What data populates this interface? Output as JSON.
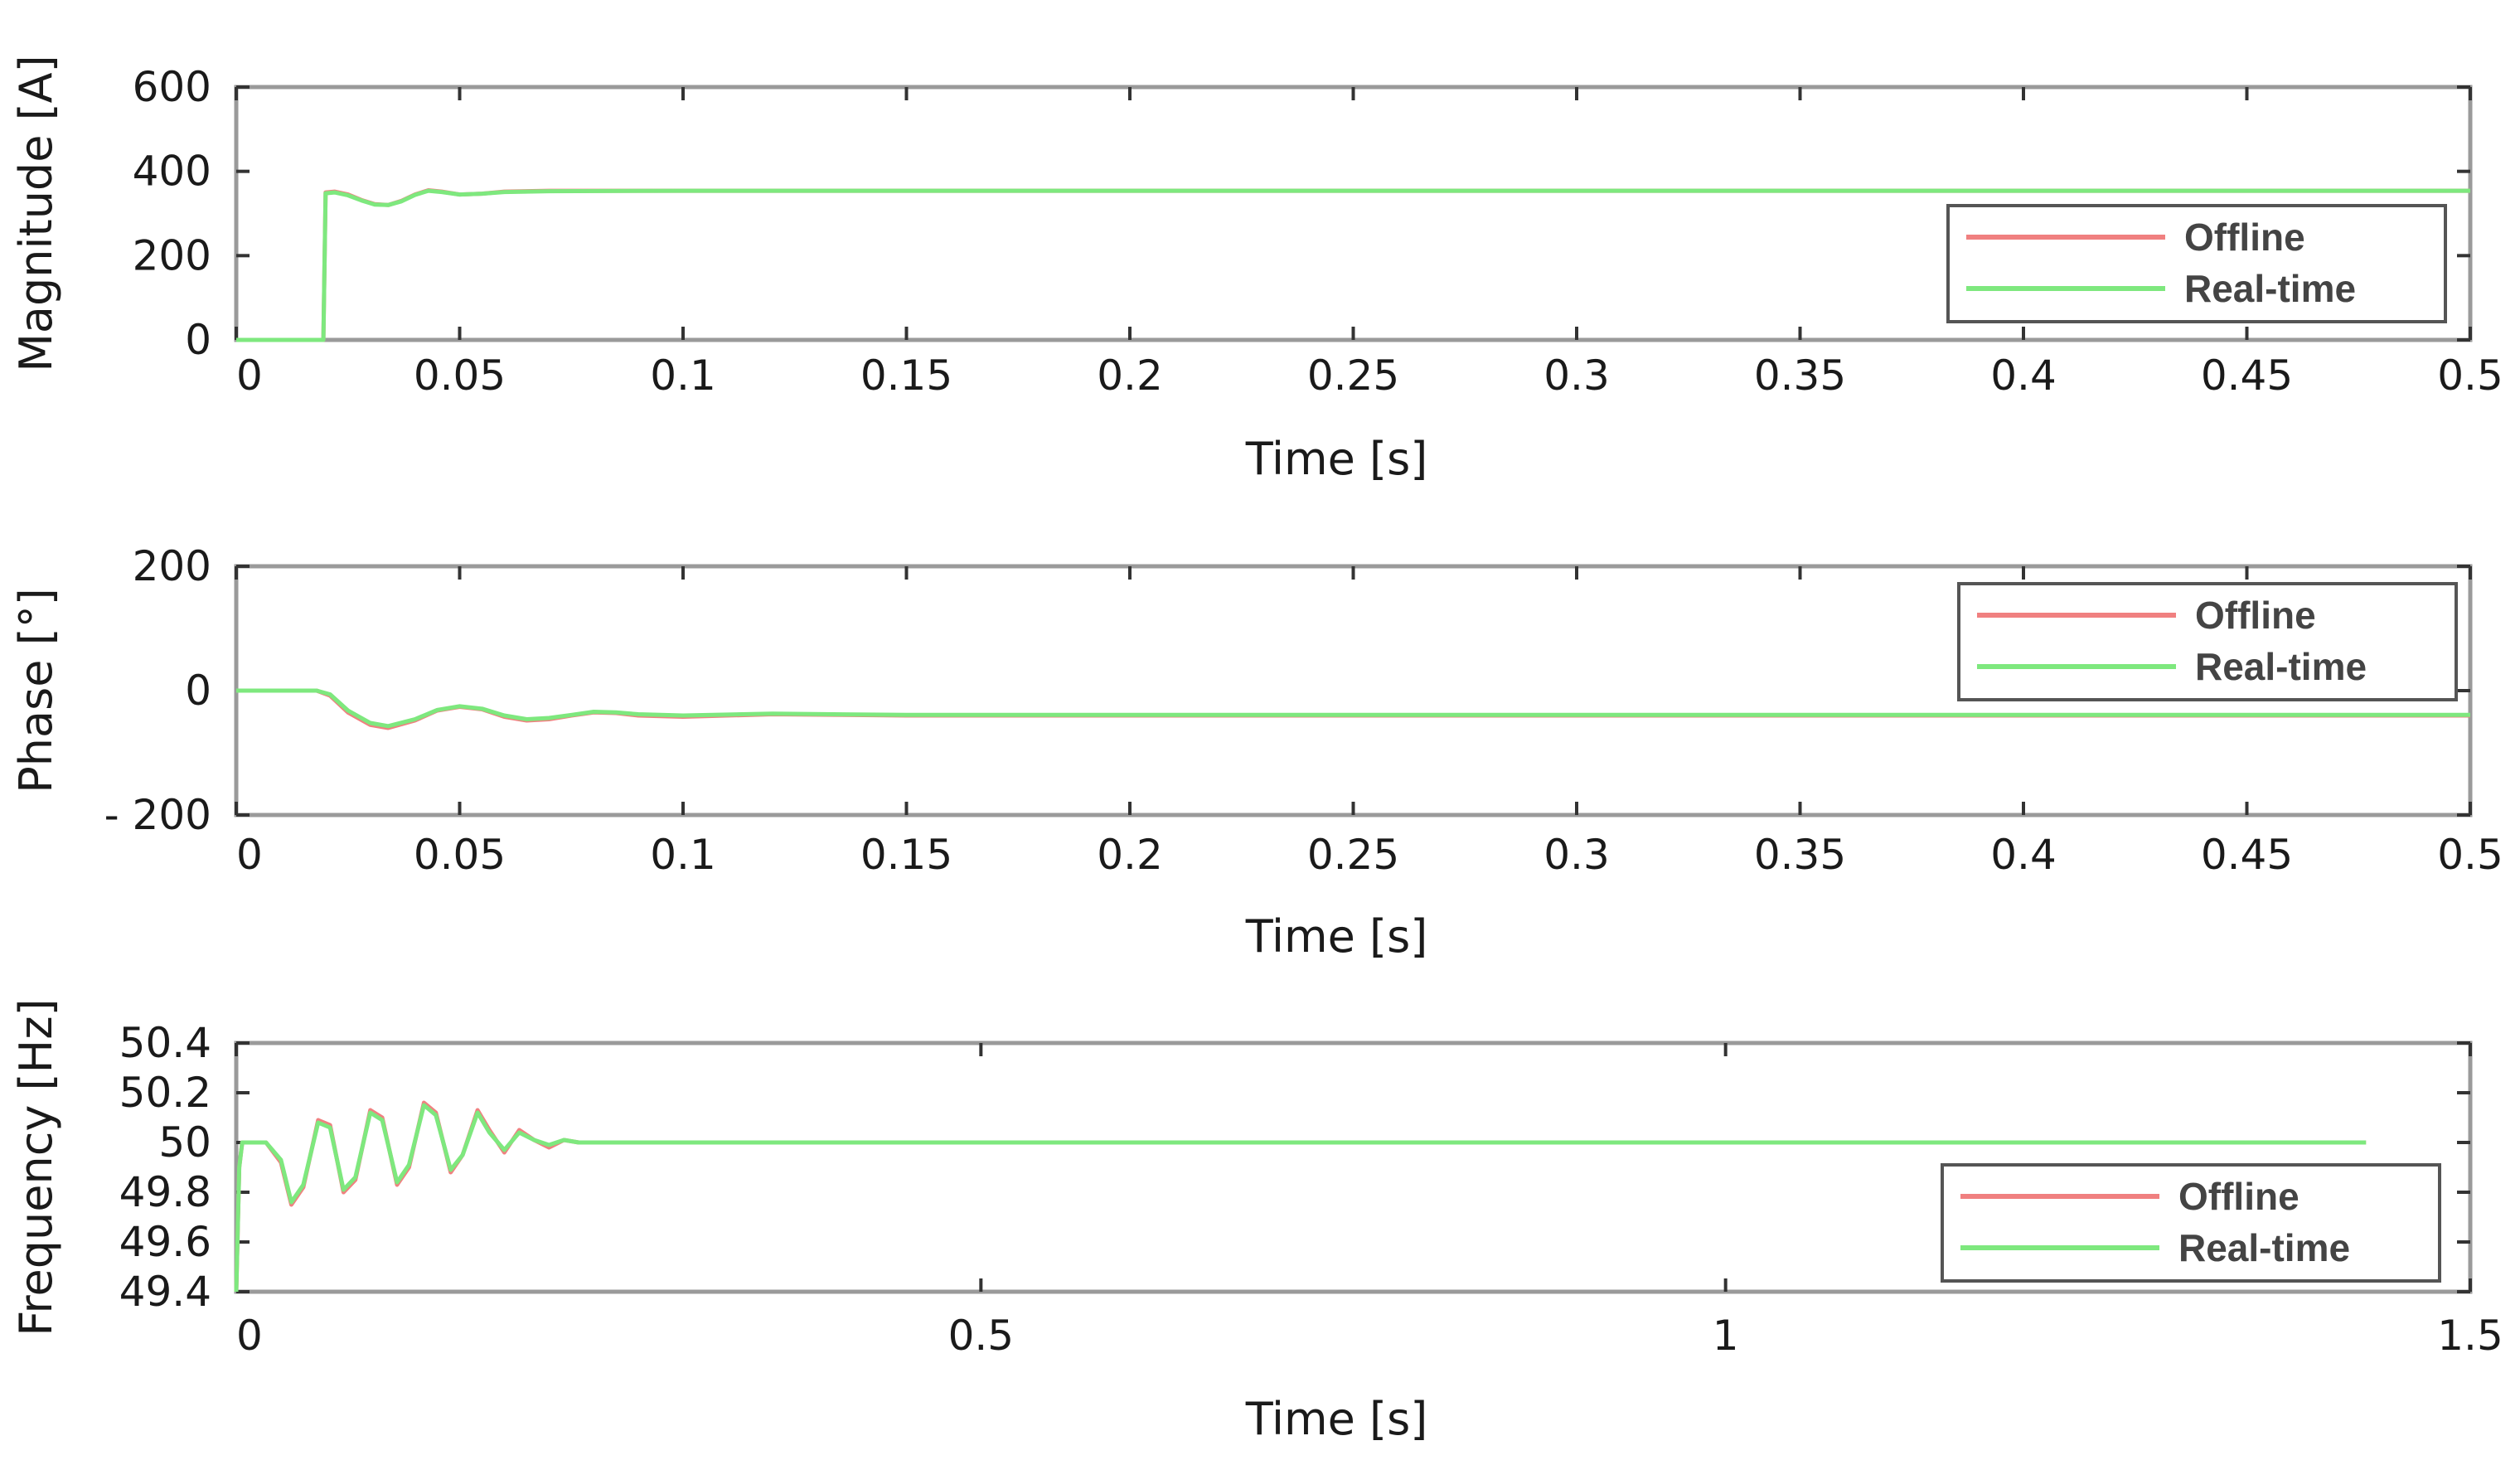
{
  "chart_data": [
    {
      "type": "line",
      "xlabel": "Time [s]",
      "ylabel": "Magnitude [A]",
      "xlim": [
        0,
        0.5
      ],
      "ylim": [
        0,
        600
      ],
      "xticks": [
        0,
        0.05,
        0.1,
        0.15,
        0.2,
        0.25,
        0.3,
        0.35,
        0.4,
        0.45,
        0.5
      ],
      "xtick_labels": [
        "0",
        "0.05",
        "0.1",
        "0.15",
        "0.2",
        "0.25",
        "0.3",
        "0.35",
        "0.4",
        "0.45",
        "0.5"
      ],
      "yticks": [
        0,
        200,
        400,
        600
      ],
      "ytick_labels": [
        "0",
        "200",
        "400",
        "600"
      ],
      "legend_placement": "bottom-right",
      "grid": false,
      "series": [
        {
          "name": "Offline",
          "color": "#f08080",
          "x": [
            0,
            0.0195,
            0.02,
            0.022,
            0.025,
            0.028,
            0.031,
            0.034,
            0.037,
            0.04,
            0.043,
            0.046,
            0.05,
            0.055,
            0.06,
            0.07,
            0.1,
            0.2,
            0.3,
            0.4,
            0.5
          ],
          "y": [
            0,
            0,
            350,
            352,
            345,
            332,
            322,
            320,
            330,
            345,
            355,
            352,
            345,
            347,
            352,
            354,
            354,
            354,
            354,
            354,
            354
          ]
        },
        {
          "name": "Real-time",
          "color": "#7ee87e",
          "x": [
            0,
            0.0195,
            0.02,
            0.022,
            0.025,
            0.028,
            0.031,
            0.034,
            0.037,
            0.04,
            0.043,
            0.046,
            0.05,
            0.055,
            0.06,
            0.07,
            0.1,
            0.2,
            0.3,
            0.4,
            0.5
          ],
          "y": [
            0,
            0,
            348,
            350,
            343,
            331,
            321,
            320,
            329,
            344,
            354,
            351,
            345,
            347,
            351,
            353,
            354,
            354,
            354,
            354,
            354
          ]
        }
      ]
    },
    {
      "type": "line",
      "xlabel": "Time [s]",
      "ylabel": "Phase [°]",
      "xlim": [
        0,
        0.5
      ],
      "ylim": [
        -200,
        200
      ],
      "xticks": [
        0,
        0.05,
        0.1,
        0.15,
        0.2,
        0.25,
        0.3,
        0.35,
        0.4,
        0.45,
        0.5
      ],
      "xtick_labels": [
        "0",
        "0.05",
        "0.1",
        "0.15",
        "0.2",
        "0.25",
        "0.3",
        "0.35",
        "0.4",
        "0.45",
        "0.5"
      ],
      "yticks": [
        -200,
        0,
        200
      ],
      "ytick_labels": [
        "- 200",
        "0",
        "200"
      ],
      "legend_placement": "top-right",
      "grid": false,
      "series": [
        {
          "name": "Offline",
          "color": "#f08080",
          "x": [
            0,
            0.018,
            0.021,
            0.025,
            0.03,
            0.034,
            0.04,
            0.045,
            0.05,
            0.055,
            0.06,
            0.065,
            0.07,
            0.075,
            0.08,
            0.085,
            0.09,
            0.1,
            0.12,
            0.15,
            0.2,
            0.3,
            0.4,
            0.5
          ],
          "y": [
            0,
            0,
            -8,
            -35,
            -55,
            -60,
            -48,
            -32,
            -26,
            -30,
            -42,
            -48,
            -46,
            -40,
            -35,
            -36,
            -40,
            -42,
            -38,
            -40,
            -40,
            -40,
            -40,
            -40
          ]
        },
        {
          "name": "Real-time",
          "color": "#7ee87e",
          "x": [
            0,
            0.018,
            0.021,
            0.025,
            0.03,
            0.034,
            0.04,
            0.045,
            0.05,
            0.055,
            0.06,
            0.065,
            0.07,
            0.075,
            0.08,
            0.085,
            0.09,
            0.1,
            0.12,
            0.15,
            0.2,
            0.3,
            0.4,
            0.5
          ],
          "y": [
            0,
            0,
            -6,
            -32,
            -52,
            -57,
            -46,
            -31,
            -25,
            -29,
            -40,
            -46,
            -44,
            -39,
            -34,
            -35,
            -38,
            -40,
            -37,
            -39,
            -39,
            -39,
            -39,
            -39
          ]
        }
      ]
    },
    {
      "type": "line",
      "xlabel": "Time [s]",
      "ylabel": "Frequency [Hz]",
      "xlim": [
        0,
        1.5
      ],
      "ylim": [
        49.4,
        50.4
      ],
      "xticks": [
        0,
        0.5,
        1,
        1.5
      ],
      "xtick_labels": [
        "0",
        "0.5",
        "1",
        "1.5"
      ],
      "yticks": [
        49.4,
        49.6,
        49.8,
        50,
        50.2,
        50.4
      ],
      "ytick_labels": [
        "49.4",
        "49.6",
        "49.8",
        "50",
        "50.2",
        "50.4"
      ],
      "legend_placement": "bottom-right",
      "grid": false,
      "series": [
        {
          "name": "Offline",
          "color": "#f08080",
          "x": [
            0,
            0.002,
            0.004,
            0.01,
            0.02,
            0.03,
            0.037,
            0.045,
            0.055,
            0.063,
            0.072,
            0.08,
            0.09,
            0.098,
            0.108,
            0.116,
            0.126,
            0.134,
            0.144,
            0.152,
            0.162,
            0.17,
            0.18,
            0.19,
            0.2,
            0.21,
            0.22,
            0.23,
            0.25,
            0.3,
            0.5,
            1.0,
            1.43
          ],
          "y": [
            49.4,
            49.9,
            50.0,
            50.0,
            50.0,
            49.92,
            49.75,
            49.82,
            50.09,
            50.07,
            49.8,
            49.85,
            50.13,
            50.1,
            49.83,
            49.9,
            50.16,
            50.12,
            49.88,
            49.95,
            50.13,
            50.05,
            49.96,
            50.05,
            50.01,
            49.98,
            50.01,
            50.0,
            50.0,
            50.0,
            50.0,
            50.0,
            50.0
          ]
        },
        {
          "name": "Real-time",
          "color": "#7ee87e",
          "x": [
            0,
            0.002,
            0.004,
            0.01,
            0.02,
            0.03,
            0.037,
            0.045,
            0.055,
            0.063,
            0.072,
            0.08,
            0.09,
            0.098,
            0.108,
            0.116,
            0.126,
            0.134,
            0.144,
            0.152,
            0.162,
            0.17,
            0.18,
            0.19,
            0.2,
            0.21,
            0.22,
            0.23,
            0.25,
            0.3,
            0.5,
            1.0,
            1.43
          ],
          "y": [
            49.4,
            49.9,
            50.0,
            50.0,
            50.0,
            49.93,
            49.76,
            49.83,
            50.08,
            50.06,
            49.81,
            49.86,
            50.12,
            50.09,
            49.84,
            49.91,
            50.15,
            50.11,
            49.89,
            49.95,
            50.12,
            50.04,
            49.97,
            50.04,
            50.01,
            49.99,
            50.01,
            50.0,
            50.0,
            50.0,
            50.0,
            50.0,
            50.0
          ]
        }
      ]
    }
  ]
}
